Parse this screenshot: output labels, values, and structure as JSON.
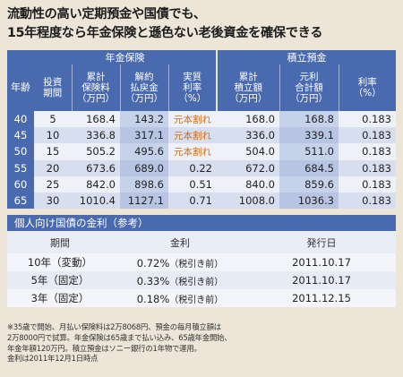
{
  "headline": {
    "line1": "流動性の高い定期預金や国債でも、",
    "line2": "15年程度なら年金保険と遜色ない老後資金を確保できる"
  },
  "main_table": {
    "group_pension": "年金保険",
    "group_savings": "積立預金",
    "col_age": "年齢",
    "col_period": [
      "投資",
      "期間"
    ],
    "col_premium": [
      "累計",
      "保険料",
      "（万円）"
    ],
    "col_refund": [
      "解約",
      "払戻金",
      "（万円）"
    ],
    "col_rate_p": [
      "実質",
      "利率",
      "（%）"
    ],
    "col_deposit": [
      "累計",
      "積立額",
      "（万円）"
    ],
    "col_total": [
      "元利",
      "合計額",
      "（万円）"
    ],
    "col_rate_s": [
      "利率",
      "（%）"
    ],
    "rows": [
      {
        "age": "40",
        "period": "5",
        "premium": "168.4",
        "refund": "143.2",
        "rate": "元本割れ",
        "deposit": "168.0",
        "total": "168.8",
        "srate": "0.183"
      },
      {
        "age": "45",
        "period": "10",
        "premium": "336.8",
        "refund": "317.1",
        "rate": "元本割れ",
        "deposit": "336.0",
        "total": "339.1",
        "srate": "0.183"
      },
      {
        "age": "50",
        "period": "15",
        "premium": "505.2",
        "refund": "495.6",
        "rate": "元本割れ",
        "deposit": "504.0",
        "total": "511.0",
        "srate": "0.183"
      },
      {
        "age": "55",
        "period": "20",
        "premium": "673.6",
        "refund": "689.0",
        "rate": "0.22",
        "deposit": "672.0",
        "total": "684.5",
        "srate": "0.183"
      },
      {
        "age": "60",
        "period": "25",
        "premium": "842.0",
        "refund": "898.6",
        "rate": "0.51",
        "deposit": "840.0",
        "total": "859.6",
        "srate": "0.183"
      },
      {
        "age": "65",
        "period": "30",
        "premium": "1010.4",
        "refund": "1127.1",
        "rate": "0.71",
        "deposit": "1008.0",
        "total": "1036.3",
        "srate": "0.183"
      }
    ]
  },
  "bond_table": {
    "title": "個人向け国債の金利（参考）",
    "col_period": "期間",
    "col_rate": "金利",
    "col_date": "発行日",
    "rows": [
      {
        "period": "10年（変動）",
        "rate": "0.72%",
        "note": "（税引き前）",
        "date": "2011.10.17"
      },
      {
        "period": "5年（固定）",
        "rate": "0.33%",
        "note": "（税引き前）",
        "date": "2011.10.17"
      },
      {
        "period": "3年（固定）",
        "rate": "0.18%",
        "note": "（税引き前）",
        "date": "2011.12.15"
      }
    ]
  },
  "notes": [
    "※35歳で開始、月払い保険料は2万8068円、預金の毎月積立額は",
    "2万8000円で試算。年金保険は65歳まで払い込み、65歳年金開始、",
    "年金年額120万円。積立預金はソニー銀行の1年物で運用。",
    "金利は2011年12月1日時点"
  ],
  "colors": {
    "header": "#4a6ab0",
    "warn": "#d46a10",
    "background": "#ece5d8"
  }
}
